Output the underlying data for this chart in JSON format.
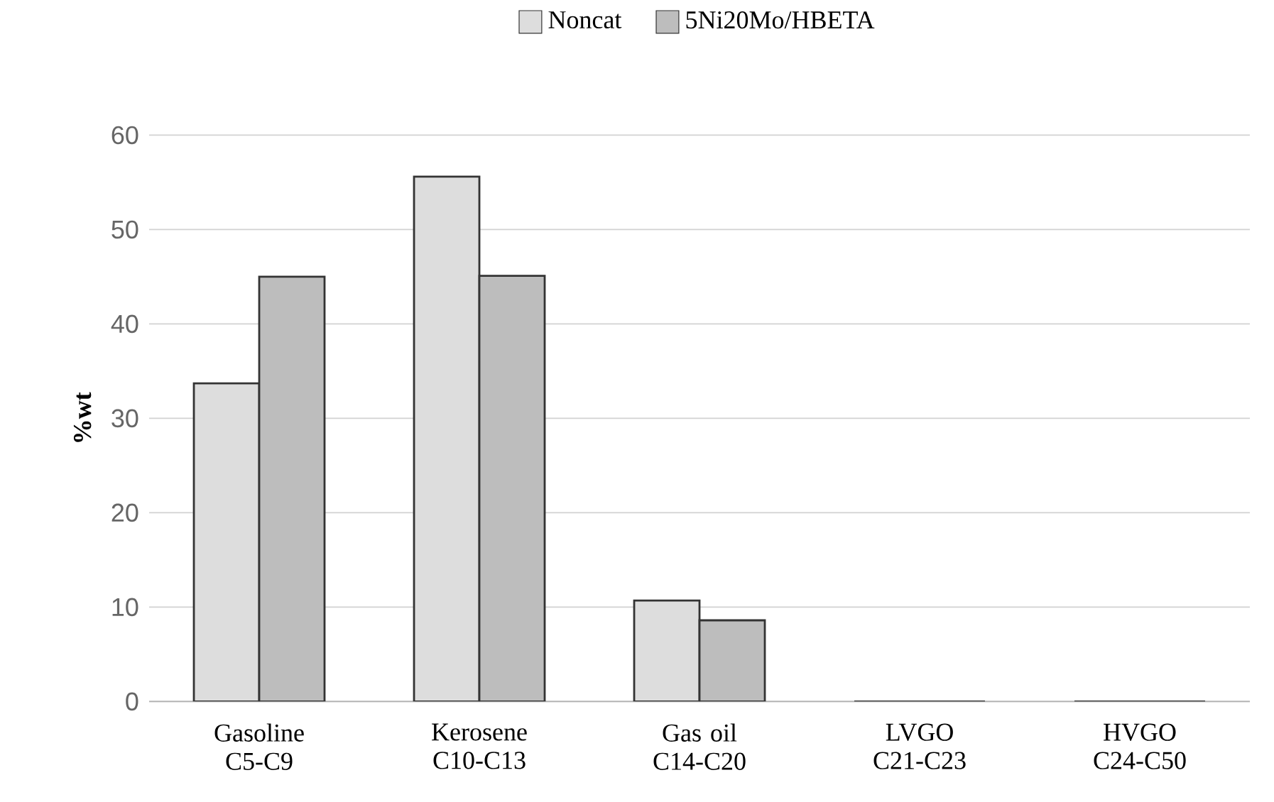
{
  "chart_data": {
    "type": "bar",
    "ylabel": "%wt",
    "categories": [
      "Gasoline C5-C9",
      "Kerosene C10-C13",
      "Gas oil C14-C20",
      "LVGO C21-C23",
      "HVGO C24-C50"
    ],
    "series": [
      {
        "name": "Noncat",
        "color": "#dddddd",
        "values": [
          33.7,
          55.6,
          10.7,
          0,
          0
        ]
      },
      {
        "name": "5Ni20Mo/HBETA",
        "color": "#bdbdbd",
        "values": [
          45.0,
          45.1,
          8.6,
          0,
          0
        ]
      }
    ],
    "ylim": [
      0,
      60
    ],
    "yticks": [
      0,
      10,
      20,
      30,
      40,
      50,
      60
    ],
    "grid": "y",
    "legend": "top"
  }
}
